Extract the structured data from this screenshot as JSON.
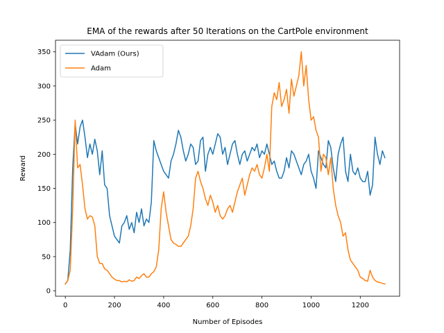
{
  "chart_data": {
    "type": "line",
    "title": "EMA of the rewards after 50 Iterations on the CartPole environment",
    "xlabel": "Number of Episodes",
    "ylabel": "Reward",
    "xlim": [
      -40,
      1360
    ],
    "ylim": [
      -8,
      367
    ],
    "xticks": [
      0,
      200,
      400,
      600,
      800,
      1000,
      1200
    ],
    "yticks": [
      0,
      50,
      100,
      150,
      200,
      250,
      300,
      350
    ],
    "grid": false,
    "legend_position": "top-left",
    "series": [
      {
        "name": "VAdam (Ours)",
        "color": "#1f77b4",
        "x": [
          0,
          10,
          20,
          30,
          40,
          50,
          60,
          70,
          80,
          90,
          100,
          110,
          120,
          130,
          140,
          150,
          160,
          170,
          180,
          190,
          200,
          210,
          220,
          230,
          240,
          250,
          260,
          270,
          280,
          290,
          300,
          310,
          320,
          330,
          340,
          350,
          360,
          370,
          380,
          390,
          400,
          410,
          420,
          430,
          440,
          450,
          460,
          470,
          480,
          490,
          500,
          510,
          520,
          530,
          540,
          550,
          560,
          570,
          580,
          590,
          600,
          610,
          620,
          630,
          640,
          650,
          660,
          670,
          680,
          690,
          700,
          710,
          720,
          730,
          740,
          750,
          760,
          770,
          780,
          790,
          800,
          810,
          820,
          830,
          840,
          850,
          860,
          870,
          880,
          890,
          900,
          910,
          920,
          930,
          940,
          950,
          960,
          970,
          980,
          990,
          1000,
          1010,
          1020,
          1030,
          1040,
          1050,
          1060,
          1070,
          1080,
          1090,
          1100,
          1110,
          1120,
          1130,
          1140,
          1150,
          1160,
          1170,
          1180,
          1190,
          1200,
          1210,
          1220,
          1230,
          1240,
          1250,
          1260,
          1270,
          1280,
          1290,
          1300
        ],
        "values": [
          10,
          15,
          60,
          180,
          245,
          215,
          240,
          250,
          225,
          195,
          215,
          200,
          222,
          205,
          170,
          205,
          155,
          150,
          110,
          95,
          80,
          75,
          70,
          95,
          100,
          110,
          90,
          100,
          85,
          115,
          100,
          120,
          95,
          105,
          100,
          130,
          220,
          205,
          195,
          185,
          175,
          170,
          165,
          190,
          200,
          215,
          235,
          225,
          205,
          190,
          200,
          215,
          210,
          185,
          190,
          220,
          225,
          175,
          200,
          210,
          200,
          215,
          230,
          225,
          200,
          210,
          185,
          200,
          215,
          220,
          200,
          185,
          200,
          205,
          190,
          200,
          210,
          205,
          215,
          195,
          205,
          200,
          215,
          200,
          185,
          190,
          175,
          165,
          165,
          175,
          195,
          180,
          205,
          200,
          190,
          180,
          170,
          185,
          190,
          200,
          175,
          165,
          150,
          205,
          195,
          185,
          180,
          220,
          210,
          180,
          160,
          200,
          215,
          225,
          175,
          160,
          200,
          175,
          170,
          180,
          165,
          160,
          160,
          175,
          140,
          155,
          225,
          200,
          185,
          205,
          195
        ]
      },
      {
        "name": "Adam",
        "color": "#ff7f0e",
        "x": [
          0,
          10,
          20,
          30,
          40,
          50,
          60,
          70,
          80,
          90,
          100,
          110,
          120,
          130,
          140,
          150,
          160,
          170,
          180,
          190,
          200,
          210,
          220,
          230,
          240,
          250,
          260,
          270,
          280,
          290,
          300,
          310,
          320,
          330,
          340,
          350,
          360,
          370,
          380,
          390,
          400,
          410,
          420,
          430,
          440,
          450,
          460,
          470,
          480,
          490,
          500,
          510,
          520,
          530,
          540,
          550,
          560,
          570,
          580,
          590,
          600,
          610,
          620,
          630,
          640,
          650,
          660,
          670,
          680,
          690,
          700,
          710,
          720,
          730,
          740,
          750,
          760,
          770,
          780,
          790,
          800,
          810,
          820,
          830,
          840,
          850,
          860,
          870,
          880,
          890,
          900,
          910,
          920,
          930,
          940,
          950,
          960,
          970,
          980,
          990,
          1000,
          1010,
          1020,
          1030,
          1040,
          1050,
          1060,
          1070,
          1080,
          1090,
          1100,
          1110,
          1120,
          1130,
          1140,
          1150,
          1160,
          1170,
          1180,
          1190,
          1200,
          1210,
          1220,
          1230,
          1240,
          1250,
          1260,
          1270,
          1280,
          1290,
          1300
        ],
        "values": [
          10,
          15,
          30,
          120,
          250,
          180,
          185,
          155,
          120,
          105,
          110,
          108,
          95,
          50,
          40,
          40,
          32,
          30,
          25,
          20,
          17,
          15,
          15,
          13,
          14,
          13,
          16,
          14,
          15,
          20,
          18,
          22,
          25,
          20,
          20,
          25,
          28,
          35,
          60,
          120,
          145,
          115,
          95,
          75,
          70,
          68,
          65,
          65,
          70,
          75,
          80,
          95,
          120,
          165,
          175,
          160,
          150,
          135,
          125,
          140,
          130,
          115,
          125,
          110,
          105,
          110,
          120,
          125,
          115,
          130,
          145,
          155,
          165,
          140,
          155,
          170,
          180,
          175,
          185,
          170,
          165,
          180,
          200,
          175,
          270,
          290,
          280,
          305,
          270,
          280,
          295,
          260,
          310,
          285,
          300,
          315,
          350,
          300,
          330,
          280,
          250,
          255,
          235,
          225,
          175,
          200,
          195,
          170,
          195,
          150,
          125,
          110,
          100,
          80,
          85,
          60,
          45,
          40,
          35,
          30,
          20,
          18,
          15,
          14,
          30,
          20,
          15,
          13,
          12,
          11,
          10
        ]
      }
    ]
  }
}
